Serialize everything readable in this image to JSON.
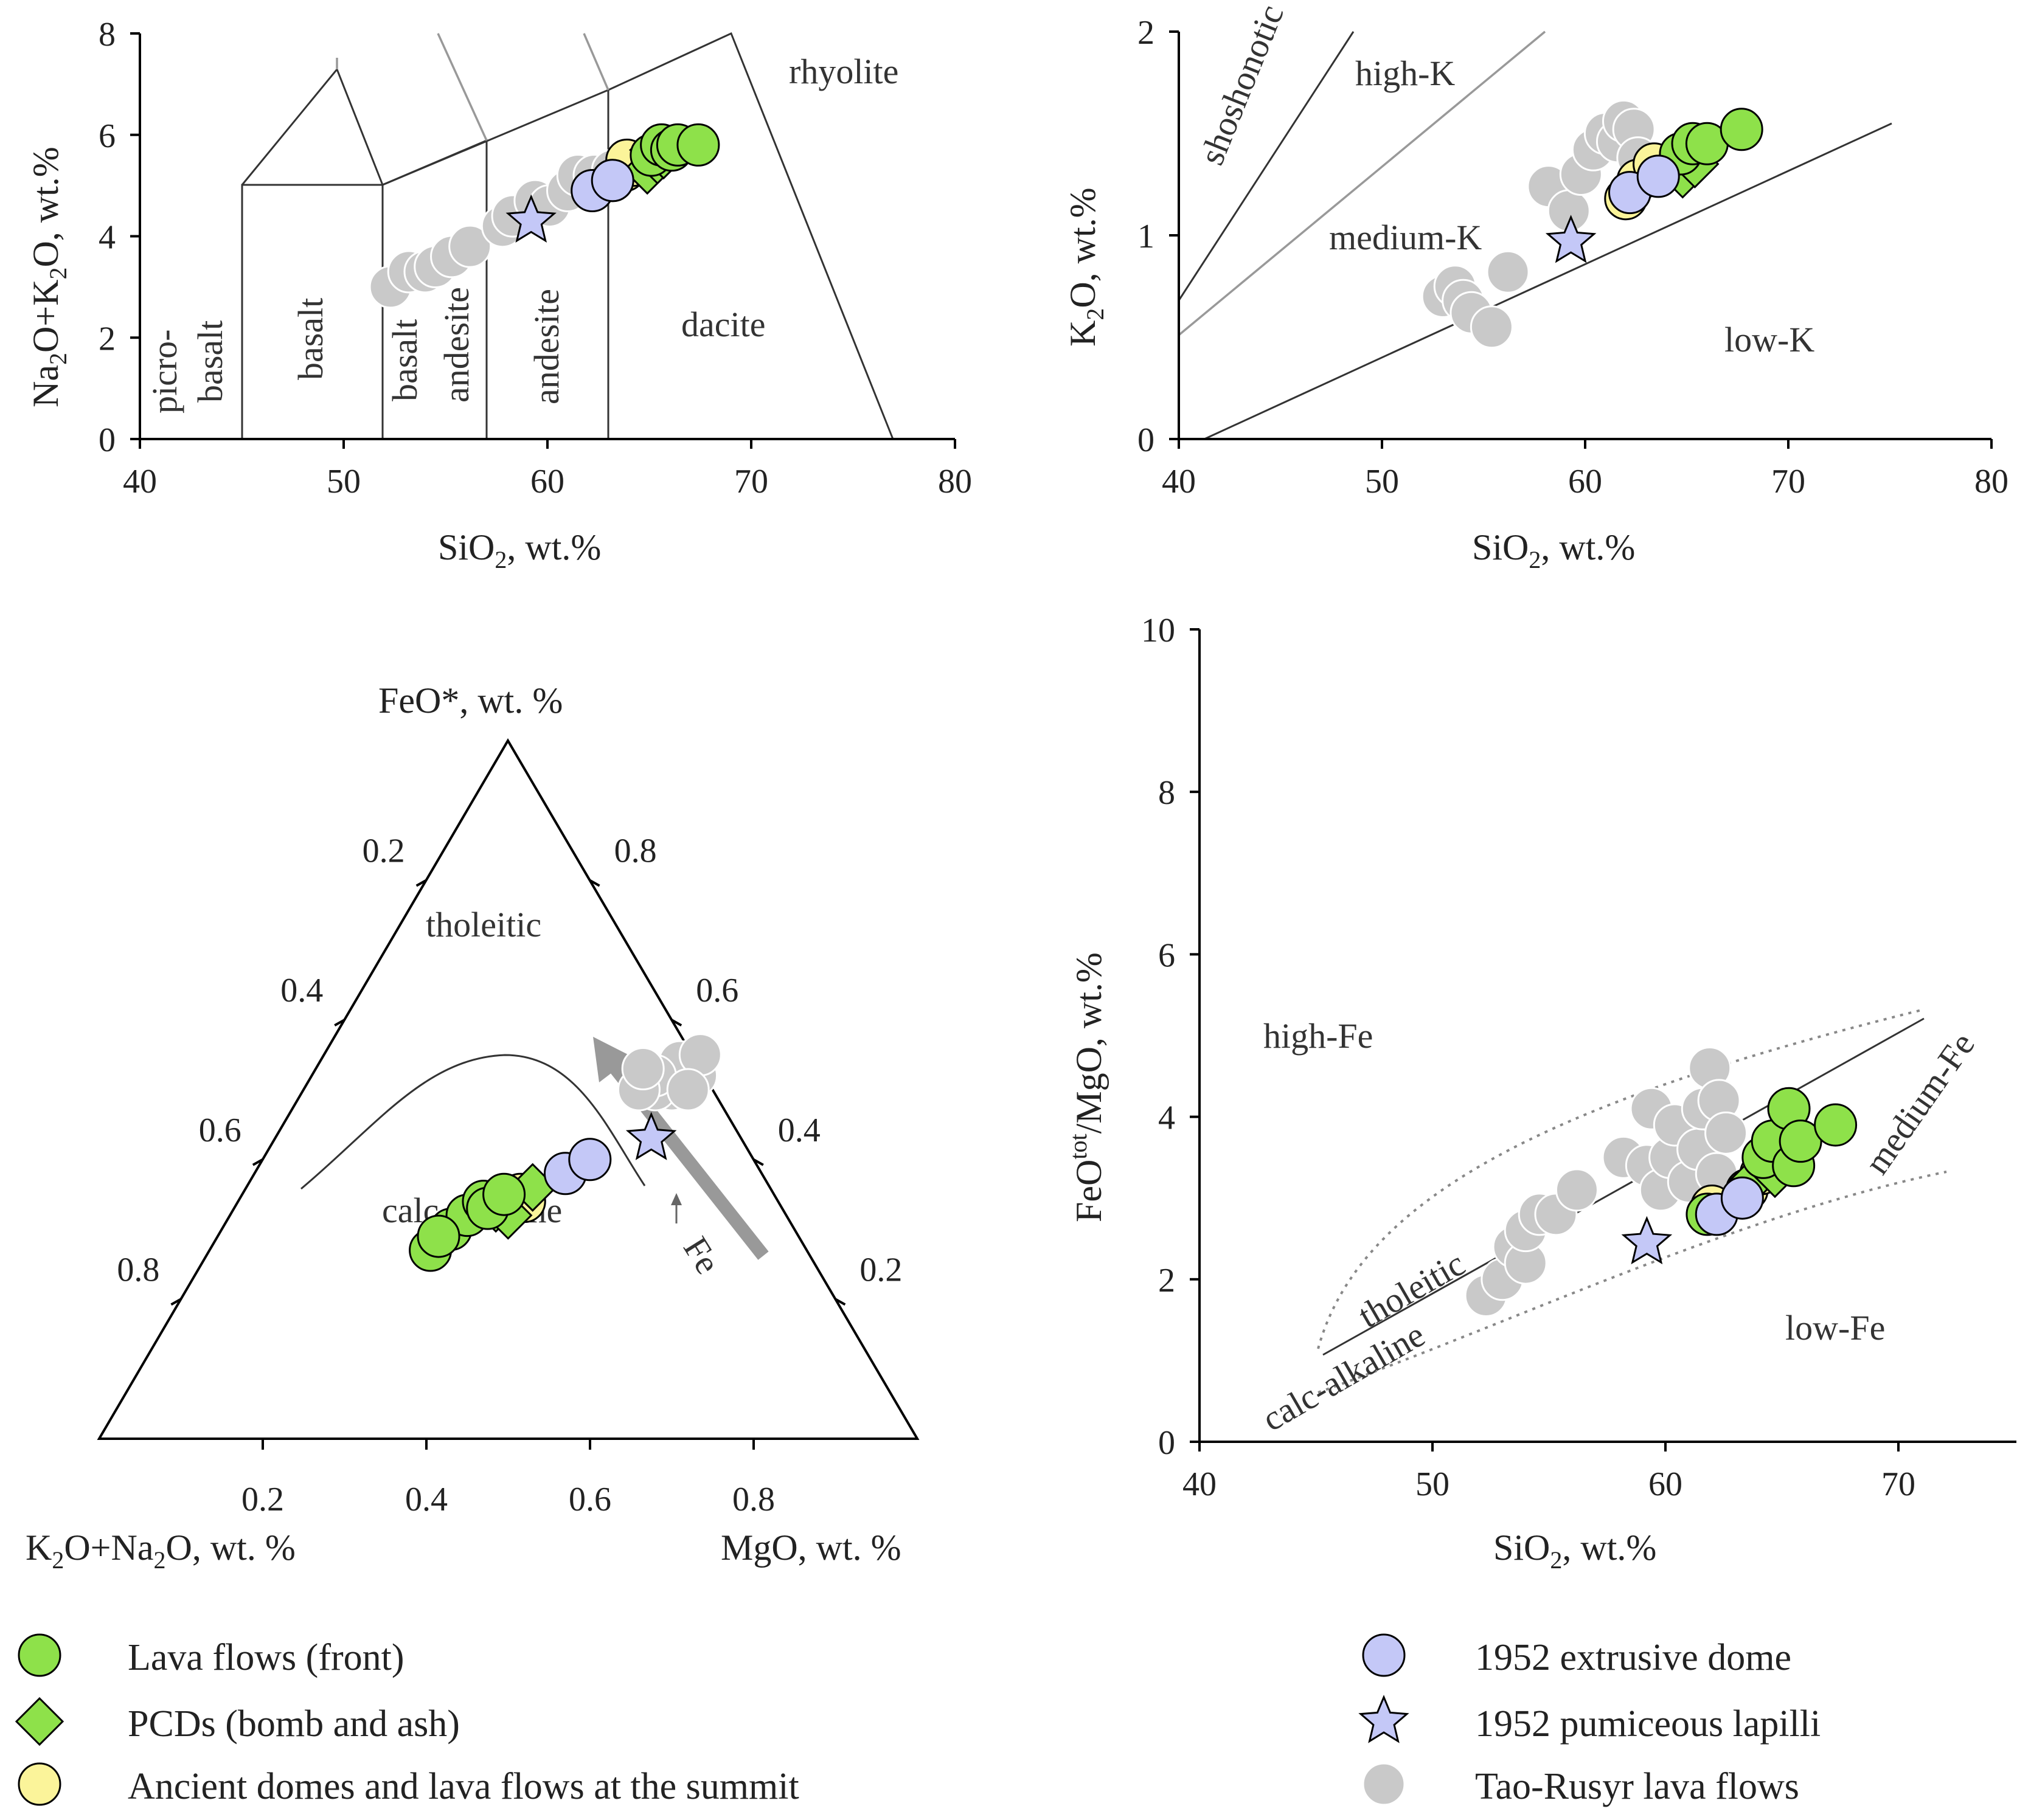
{
  "chart_data": [
    {
      "id": "tas",
      "type": "scatter",
      "xlabel": "SiO2, wt.%",
      "ylabel": "Na2O+K2O, wt.%",
      "xlim": [
        40,
        80
      ],
      "ylim": [
        0,
        8
      ],
      "xticks": [
        40,
        50,
        60,
        70,
        80
      ],
      "yticks": [
        0,
        2,
        4,
        6,
        8
      ],
      "field_labels": [
        "picro-",
        "basalt",
        "basalt",
        "basalt",
        "andesite",
        "andesite",
        "dacite",
        "rhyolite"
      ],
      "series": [
        {
          "name": "Tao-Rusyr lava flows",
          "points": [
            [
              52.3,
              3.0
            ],
            [
              53.2,
              3.3
            ],
            [
              54.0,
              3.3
            ],
            [
              54.5,
              3.4
            ],
            [
              55.3,
              3.6
            ],
            [
              56.2,
              3.8
            ],
            [
              57.8,
              4.2
            ],
            [
              58.3,
              4.4
            ],
            [
              59.4,
              4.7
            ],
            [
              60.1,
              4.6
            ],
            [
              61.0,
              4.9
            ],
            [
              61.5,
              5.2
            ],
            [
              62.3,
              5.2
            ],
            [
              63.2,
              5.3
            ]
          ]
        },
        {
          "name": "1952 pumiceous lapilli",
          "points": [
            [
              59.2,
              4.3
            ]
          ]
        },
        {
          "name": "Ancient domes and lava flows at the summit",
          "points": [
            [
              63.2,
              5.1
            ],
            [
              63.8,
              5.3
            ],
            [
              64.2,
              5.4
            ],
            [
              63.9,
              5.5
            ]
          ]
        },
        {
          "name": "PCDs (bomb and ash)",
          "points": [
            [
              64.9,
              5.3
            ],
            [
              65.4,
              5.5
            ],
            [
              65.7,
              5.6
            ],
            [
              65.2,
              5.7
            ]
          ]
        },
        {
          "name": "Lava flows (front)",
          "points": [
            [
              65.1,
              5.6
            ],
            [
              65.6,
              5.8
            ],
            [
              66.1,
              5.7
            ],
            [
              66.4,
              5.8
            ],
            [
              67.4,
              5.8
            ]
          ]
        },
        {
          "name": "1952 extrusive dome",
          "points": [
            [
              62.2,
              4.9
            ],
            [
              63.2,
              5.1
            ]
          ]
        }
      ]
    },
    {
      "id": "k2o",
      "type": "scatter",
      "xlabel": "SiO2, wt.%",
      "ylabel": "K2O, wt.%",
      "xlim": [
        40,
        80
      ],
      "ylim": [
        0,
        2
      ],
      "xticks": [
        40,
        50,
        60,
        70,
        80
      ],
      "yticks": [
        0,
        1,
        2
      ],
      "field_labels": [
        "shoshonotic",
        "high-K",
        "medium-K",
        "low-K"
      ],
      "series": [
        {
          "name": "Tao-Rusyr lava flows",
          "points": [
            [
              53.0,
              0.7
            ],
            [
              53.6,
              0.75
            ],
            [
              54.0,
              0.68
            ],
            [
              54.4,
              0.62
            ],
            [
              55.4,
              0.55
            ],
            [
              56.2,
              0.82
            ],
            [
              58.2,
              1.24
            ],
            [
              59.2,
              1.12
            ],
            [
              59.8,
              1.3
            ],
            [
              60.4,
              1.42
            ],
            [
              61.0,
              1.5
            ],
            [
              61.6,
              1.46
            ],
            [
              61.9,
              1.56
            ],
            [
              62.4,
              1.52
            ],
            [
              62.6,
              1.38
            ]
          ]
        },
        {
          "name": "1952 pumiceous lapilli",
          "points": [
            [
              59.3,
              0.97
            ]
          ]
        },
        {
          "name": "Ancient domes and lava flows at the summit",
          "points": [
            [
              62.0,
              1.18
            ],
            [
              62.6,
              1.27
            ],
            [
              63.4,
              1.35
            ]
          ]
        },
        {
          "name": "PCDs (bomb and ash)",
          "points": [
            [
              64.8,
              1.3
            ],
            [
              65.4,
              1.35
            ],
            [
              65.1,
              1.43
            ]
          ]
        },
        {
          "name": "Lava flows (front)",
          "points": [
            [
              64.7,
              1.4
            ],
            [
              65.3,
              1.45
            ],
            [
              66.0,
              1.45
            ],
            [
              67.7,
              1.52
            ]
          ]
        },
        {
          "name": "1952 extrusive dome",
          "points": [
            [
              62.2,
              1.21
            ],
            [
              63.6,
              1.29
            ]
          ]
        }
      ]
    },
    {
      "id": "afm",
      "type": "scatter",
      "ternary": true,
      "apex_labels": {
        "top": "FeO*, wt. %",
        "left": "K2O+Na2O, wt. %",
        "right": "MgO, wt. %"
      },
      "tick_values": [
        0.2,
        0.4,
        0.6,
        0.8
      ],
      "field_labels": [
        "tholeitic",
        "calc-alkaline"
      ],
      "trend_arrow_label": "Fe",
      "series": [
        {
          "name": "Tao-Rusyr lava flows",
          "points": [
            [
              0.45,
              0.5
            ],
            [
              0.47,
              0.52
            ],
            [
              0.43,
              0.5
            ],
            [
              0.44,
              0.54
            ],
            [
              0.42,
              0.52
            ],
            [
              0.41,
              0.5
            ],
            [
              0.46,
              0.55
            ],
            [
              0.4,
              0.53
            ],
            [
              0.47,
              0.5
            ]
          ]
        },
        {
          "name": "1952 pumiceous lapilli",
          "points": [
            [
              0.46,
              0.43
            ]
          ]
        },
        {
          "name": "Ancient domes and lava flows at the summit",
          "points": [
            [
              0.33,
              0.33
            ],
            [
              0.34,
              0.35
            ],
            [
              0.35,
              0.34
            ]
          ]
        },
        {
          "name": "PCDs (bomb and ash)",
          "points": [
            [
              0.32,
              0.33
            ],
            [
              0.34,
              0.32
            ],
            [
              0.35,
              0.36
            ]
          ]
        },
        {
          "name": "Lava flows (front)",
          "points": [
            [
              0.27,
              0.27
            ],
            [
              0.28,
              0.3
            ],
            [
              0.29,
              0.32
            ],
            [
              0.3,
              0.34
            ],
            [
              0.31,
              0.33
            ],
            [
              0.32,
              0.35
            ],
            [
              0.27,
              0.29
            ]
          ]
        },
        {
          "name": "1952 extrusive dome",
          "points": [
            [
              0.38,
              0.38
            ],
            [
              0.4,
              0.4
            ]
          ]
        }
      ]
    },
    {
      "id": "feo-mgo",
      "type": "scatter",
      "xlabel": "SiO2, wt.%",
      "ylabel": "FeOtot/MgO, wt.%",
      "xlim": [
        40,
        75
      ],
      "ylim": [
        0,
        10
      ],
      "xticks": [
        40,
        50,
        60,
        70
      ],
      "yticks": [
        0,
        2,
        4,
        6,
        8,
        10
      ],
      "field_labels": [
        "high-Fe",
        "medium-Fe",
        "low-Fe",
        "tholeitic",
        "calc-alkaline"
      ],
      "series": [
        {
          "name": "Tao-Rusyr lava flows",
          "points": [
            [
              52.3,
              1.8
            ],
            [
              53.0,
              2.0
            ],
            [
              53.5,
              2.4
            ],
            [
              54.0,
              2.2
            ],
            [
              54.0,
              2.6
            ],
            [
              54.6,
              2.8
            ],
            [
              55.3,
              2.8
            ],
            [
              56.2,
              3.1
            ],
            [
              58.2,
              3.5
            ],
            [
              59.2,
              3.4
            ],
            [
              59.4,
              4.1
            ],
            [
              59.8,
              3.1
            ],
            [
              60.2,
              3.5
            ],
            [
              60.4,
              3.9
            ],
            [
              61.0,
              3.2
            ],
            [
              61.4,
              3.6
            ],
            [
              61.6,
              4.1
            ],
            [
              61.9,
              4.6
            ],
            [
              62.3,
              4.2
            ],
            [
              62.6,
              3.8
            ],
            [
              62.2,
              3.3
            ]
          ]
        },
        {
          "name": "1952 pumiceous lapilli",
          "points": [
            [
              59.2,
              2.45
            ]
          ]
        },
        {
          "name": "Ancient domes and lava flows at the summit",
          "points": [
            [
              62.0,
              2.9
            ],
            [
              63.5,
              3.1
            ],
            [
              64.1,
              3.3
            ]
          ]
        },
        {
          "name": "PCDs (bomb and ash)",
          "points": [
            [
              63.7,
              3.2
            ],
            [
              64.7,
              3.3
            ],
            [
              65.1,
              3.5
            ]
          ]
        },
        {
          "name": "Lava flows (front)",
          "points": [
            [
              61.8,
              2.8
            ],
            [
              64.2,
              3.5
            ],
            [
              64.6,
              3.7
            ],
            [
              65.3,
              4.1
            ],
            [
              65.5,
              3.4
            ],
            [
              65.8,
              3.7
            ],
            [
              67.3,
              3.9
            ]
          ]
        },
        {
          "name": "1952 extrusive dome",
          "points": [
            [
              62.2,
              2.8
            ],
            [
              63.3,
              3.0
            ]
          ]
        }
      ]
    }
  ],
  "legend": [
    {
      "label": "Lava flows (front)",
      "marker": "circle",
      "color": "#8ee14a"
    },
    {
      "label": "PCDs (bomb and ash)",
      "marker": "diamond",
      "color": "#8ee14a"
    },
    {
      "label": "Ancient domes and lava flows at the summit",
      "marker": "circle",
      "color": "#fbf49a"
    },
    {
      "label": "1952 extrusive dome",
      "marker": "circle",
      "color": "#c4c8f7"
    },
    {
      "label": "1952 pumiceous lapilli",
      "marker": "star",
      "color": "#c4c8f7"
    },
    {
      "label": "Tao-Rusyr lava flows",
      "marker": "circle",
      "color": "#c9c9c9"
    }
  ]
}
